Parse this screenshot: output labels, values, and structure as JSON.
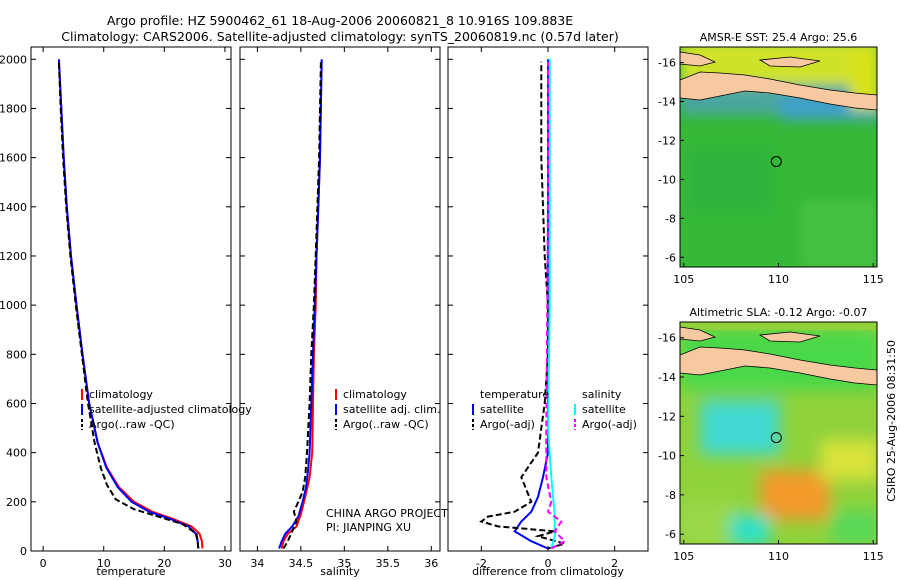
{
  "header": {
    "line1": "Argo profile: HZ 5900462_61 18-Aug-2006 20060821_8 10.916S 109.883E",
    "line2": "Climatology: CARS2006. Satellite-adjusted climatology: synTS_20060819.nc (0.57d later)"
  },
  "credit": "CSIRO 25-Aug-2006 08:31:50",
  "colors": {
    "red": "#ff0000",
    "blue": "#0000ff",
    "black": "#000000",
    "cyan": "#00ffff",
    "magenta": "#ff00ff",
    "land": "#f7c9a0"
  },
  "chart_data": [
    {
      "id": "temperature",
      "type": "line",
      "xlabel": "temperature",
      "ylabel": "",
      "xlim": [
        -2,
        31
      ],
      "ylim": [
        2050,
        0
      ],
      "xticks": [
        0,
        10,
        20,
        30
      ],
      "yticks": [
        0,
        200,
        400,
        600,
        800,
        1000,
        1200,
        1400,
        1600,
        1800,
        2000
      ],
      "legend": [
        "climatology",
        "satellite-adjusted climatology",
        "Argo(..raw -QC)"
      ],
      "series": [
        {
          "name": "climatology",
          "color": "red",
          "dash": false,
          "points": [
            [
              26.3,
              10
            ],
            [
              26.2,
              40
            ],
            [
              25.8,
              70
            ],
            [
              24.5,
              100
            ],
            [
              21.5,
              130
            ],
            [
              18,
              160
            ],
            [
              15,
              200
            ],
            [
              12.5,
              260
            ],
            [
              10.5,
              340
            ],
            [
              9,
              440
            ],
            [
              7.6,
              600
            ],
            [
              6.5,
              800
            ],
            [
              5.5,
              1000
            ],
            [
              4.6,
              1200
            ],
            [
              3.9,
              1400
            ],
            [
              3.4,
              1600
            ],
            [
              3,
              1800
            ],
            [
              2.6,
              2000
            ]
          ]
        },
        {
          "name": "satellite-adjusted climatology",
          "color": "blue",
          "dash": false,
          "points": [
            [
              25.6,
              10
            ],
            [
              25.5,
              40
            ],
            [
              25.2,
              70
            ],
            [
              24,
              100
            ],
            [
              21,
              130
            ],
            [
              17.5,
              160
            ],
            [
              14.6,
              200
            ],
            [
              12.3,
              260
            ],
            [
              10.4,
              340
            ],
            [
              9,
              440
            ],
            [
              7.6,
              600
            ],
            [
              6.5,
              800
            ],
            [
              5.5,
              1000
            ],
            [
              4.6,
              1200
            ],
            [
              3.9,
              1400
            ],
            [
              3.4,
              1600
            ],
            [
              3,
              1800
            ],
            [
              2.6,
              2000
            ]
          ]
        },
        {
          "name": "Argo(..raw -QC)",
          "color": "black",
          "dash": true,
          "points": [
            [
              25.6,
              10
            ],
            [
              25.5,
              40
            ],
            [
              25.3,
              70
            ],
            [
              23,
              110
            ],
            [
              19,
              140
            ],
            [
              15,
              170
            ],
            [
              12,
              210
            ],
            [
              10.5,
              270
            ],
            [
              9.5,
              340
            ],
            [
              8.5,
              440
            ],
            [
              7.4,
              600
            ],
            [
              6.4,
              800
            ],
            [
              5.4,
              1000
            ],
            [
              4.5,
              1200
            ],
            [
              3.8,
              1400
            ],
            [
              3.3,
              1600
            ],
            [
              2.9,
              1800
            ],
            [
              2.6,
              1990
            ]
          ]
        }
      ]
    },
    {
      "id": "salinity",
      "type": "line",
      "xlabel": "salinity",
      "ylabel": "",
      "xlim": [
        33.8,
        36.1
      ],
      "ylim": [
        2050,
        0
      ],
      "xticks": [
        34,
        34.5,
        35,
        35.5,
        36
      ],
      "legend": [
        "climatology",
        "satellite adj. clim.",
        "Argo(..raw -QC)"
      ],
      "annotations": [
        "CHINA ARGO PROJECT",
        "PI: JIANPING XU"
      ],
      "series": [
        {
          "name": "climatology",
          "color": "red",
          "dash": false,
          "points": [
            [
              34.28,
              10
            ],
            [
              34.3,
              40
            ],
            [
              34.35,
              70
            ],
            [
              34.45,
              100
            ],
            [
              34.5,
              150
            ],
            [
              34.55,
              220
            ],
            [
              34.6,
              300
            ],
            [
              34.63,
              400
            ],
            [
              34.64,
              600
            ],
            [
              34.65,
              800
            ],
            [
              34.67,
              1000
            ],
            [
              34.68,
              1200
            ],
            [
              34.7,
              1400
            ],
            [
              34.72,
              1600
            ],
            [
              34.73,
              1870
            ]
          ]
        },
        {
          "name": "satellite adj. clim.",
          "color": "blue",
          "dash": false,
          "points": [
            [
              34.25,
              10
            ],
            [
              34.28,
              40
            ],
            [
              34.32,
              70
            ],
            [
              34.4,
              100
            ],
            [
              34.47,
              140
            ],
            [
              34.52,
              200
            ],
            [
              34.56,
              260
            ],
            [
              34.58,
              320
            ],
            [
              34.6,
              400
            ],
            [
              34.62,
              600
            ],
            [
              34.64,
              800
            ],
            [
              34.66,
              1000
            ],
            [
              34.68,
              1200
            ],
            [
              34.7,
              1400
            ],
            [
              34.72,
              1600
            ],
            [
              34.73,
              1800
            ],
            [
              34.74,
              2000
            ]
          ]
        },
        {
          "name": "Argo(..raw -QC)",
          "color": "black",
          "dash": true,
          "points": [
            [
              34.3,
              10
            ],
            [
              34.35,
              40
            ],
            [
              34.4,
              80
            ],
            [
              34.45,
              120
            ],
            [
              34.42,
              160
            ],
            [
              34.47,
              200
            ],
            [
              34.52,
              240
            ],
            [
              34.55,
              300
            ],
            [
              34.57,
              400
            ],
            [
              34.6,
              600
            ],
            [
              34.62,
              800
            ],
            [
              34.65,
              1000
            ],
            [
              34.67,
              1200
            ],
            [
              34.69,
              1400
            ],
            [
              34.71,
              1600
            ],
            [
              34.72,
              1800
            ],
            [
              34.73,
              1990
            ]
          ]
        }
      ]
    },
    {
      "id": "difference",
      "type": "line",
      "xlabel": "difference from climatology",
      "ylabel": "",
      "xlim": [
        -3,
        3
      ],
      "ylim": [
        2050,
        0
      ],
      "xticks": [
        -2,
        0,
        2
      ],
      "legend": [
        "temperature",
        "satellite",
        "Argo(-adj)",
        "salinity",
        "satellite",
        "Argo(-adj)"
      ],
      "series": [
        {
          "name": "temperature satellite",
          "color": "blue",
          "dash": false,
          "points": [
            [
              0,
              10
            ],
            [
              -0.5,
              40
            ],
            [
              -1,
              80
            ],
            [
              -0.8,
              120
            ],
            [
              -0.5,
              160
            ],
            [
              -0.3,
              220
            ],
            [
              -0.15,
              300
            ],
            [
              0,
              400
            ],
            [
              0,
              2000
            ]
          ]
        },
        {
          "name": "temperature Argo(-adj)",
          "color": "black",
          "dash": true,
          "points": [
            [
              0,
              10
            ],
            [
              0.5,
              30
            ],
            [
              -0.3,
              60
            ],
            [
              0.2,
              80
            ],
            [
              -1.5,
              100
            ],
            [
              -2,
              120
            ],
            [
              -1.8,
              140
            ],
            [
              -1,
              160
            ],
            [
              -0.5,
              200
            ],
            [
              -0.8,
              300
            ],
            [
              -0.3,
              400
            ],
            [
              -0.2,
              500
            ],
            [
              -0.1,
              600
            ],
            [
              0,
              800
            ],
            [
              0,
              1000
            ],
            [
              -0.1,
              1200
            ],
            [
              -0.15,
              1400
            ],
            [
              -0.2,
              1600
            ],
            [
              -0.2,
              1800
            ],
            [
              -0.2,
              1990
            ]
          ]
        },
        {
          "name": "salinity satellite",
          "color": "cyan",
          "dash": false,
          "points": [
            [
              0.1,
              10
            ],
            [
              0.2,
              60
            ],
            [
              0.2,
              150
            ],
            [
              0.1,
              300
            ],
            [
              0,
              500
            ],
            [
              0.05,
              1000
            ],
            [
              0.05,
              2000
            ]
          ]
        },
        {
          "name": "salinity Argo(-adj)",
          "color": "magenta",
          "dash": true,
          "points": [
            [
              0.1,
              10
            ],
            [
              0.5,
              40
            ],
            [
              0.2,
              80
            ],
            [
              0.4,
              120
            ],
            [
              0,
              160
            ],
            [
              0.1,
              200
            ],
            [
              -0.05,
              300
            ],
            [
              -0.05,
              500
            ],
            [
              -0.02,
              1000
            ],
            [
              0,
              1500
            ],
            [
              0,
              1990
            ]
          ]
        }
      ]
    },
    {
      "id": "sst-map",
      "type": "heatmap",
      "title": "AMSR-E SST: 25.4 Argo: 25.6",
      "xlim": [
        104.8,
        115.2
      ],
      "ylim": [
        -16.8,
        -5.5
      ],
      "xticks": [
        105,
        110,
        115
      ],
      "yticks": [
        -6,
        -8,
        -10,
        -12,
        -14,
        -16
      ],
      "marker": [
        109.883,
        -10.916
      ]
    },
    {
      "id": "sla-map",
      "type": "heatmap",
      "title": "Altimetric SLA: -0.12 Argo: -0.07",
      "xlim": [
        104.8,
        115.2
      ],
      "ylim": [
        -16.8,
        -5.5
      ],
      "xticks": [
        105,
        110,
        115
      ],
      "yticks": [
        -6,
        -8,
        -10,
        -12,
        -14,
        -16
      ],
      "marker": [
        109.883,
        -10.916
      ]
    }
  ]
}
